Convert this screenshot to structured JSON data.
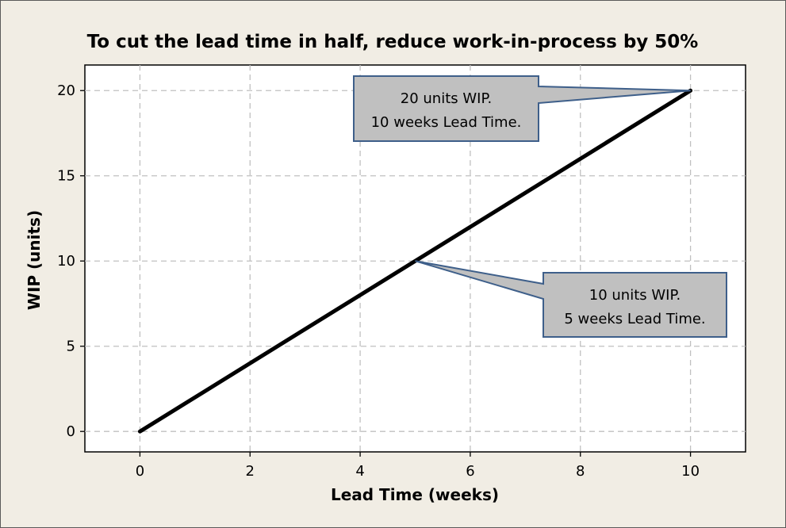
{
  "chart_data": {
    "type": "line",
    "title": "To cut the lead time in half, reduce work-in-process by 50%",
    "xlabel": "Lead Time (weeks)",
    "ylabel": "WIP (units)",
    "xlim": [
      -1,
      11
    ],
    "ylim": [
      -1.2,
      21.5
    ],
    "xticks": [
      0,
      2,
      4,
      6,
      8,
      10
    ],
    "yticks": [
      0,
      5,
      10,
      15,
      20
    ],
    "grid": true,
    "series": [
      {
        "x": [
          0,
          10
        ],
        "y": [
          0,
          20
        ],
        "color": "#000000"
      }
    ],
    "annotations": [
      {
        "point": [
          10,
          20
        ],
        "lines": [
          "20 units WIP.",
          "10 weeks Lead Time."
        ]
      },
      {
        "point": [
          5,
          10
        ],
        "lines": [
          "10 units WIP.",
          "5 weeks Lead Time."
        ]
      }
    ],
    "colors": {
      "background": "#f1ede4",
      "plot_area": "#ffffff",
      "grid": "#c0c0c0",
      "callout_fill": "#c0c0c0",
      "callout_border": "#3e5f8a"
    }
  }
}
